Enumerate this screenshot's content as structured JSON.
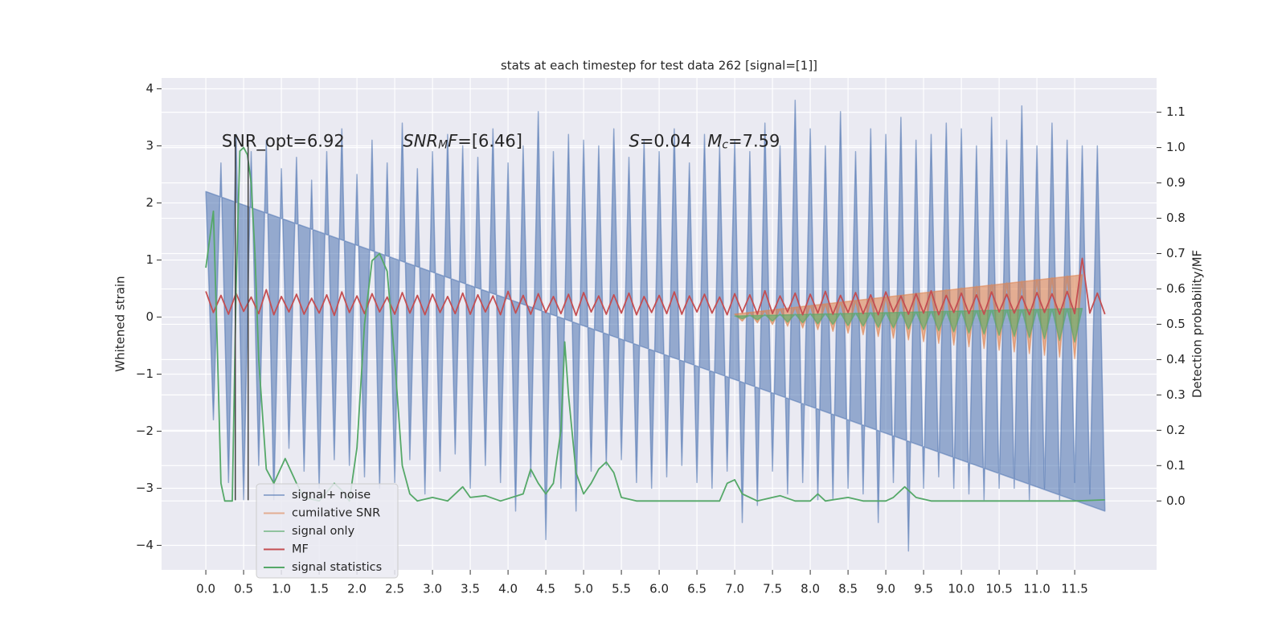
{
  "chart_data": {
    "type": "line",
    "title": "stats at each timestep for test data 262 [signal=[1]]",
    "y_label": "Whitened strain",
    "y2_label": "Detection probability/MF",
    "xlim": [
      -0.586,
      12.584
    ],
    "ylim": [
      -4.43,
      4.19
    ],
    "y2lim": [
      -0.195,
      1.197
    ],
    "xticks": [
      {
        "value": 0,
        "label": "0.0"
      },
      {
        "value": 0.5,
        "label": "0.5"
      },
      {
        "value": 1,
        "label": "1.0"
      },
      {
        "value": 1.5,
        "label": "1.5"
      },
      {
        "value": 2,
        "label": "2.0"
      },
      {
        "value": 2.5,
        "label": "2.5"
      },
      {
        "value": 3,
        "label": "3.0"
      },
      {
        "value": 3.5,
        "label": "3.5"
      },
      {
        "value": 4,
        "label": "4.0"
      },
      {
        "value": 4.5,
        "label": "4.5"
      },
      {
        "value": 5,
        "label": "5.0"
      },
      {
        "value": 5.5,
        "label": "5.5"
      },
      {
        "value": 6,
        "label": "6.0"
      },
      {
        "value": 6.5,
        "label": "6.5"
      },
      {
        "value": 7,
        "label": "7.0"
      },
      {
        "value": 7.5,
        "label": "7.5"
      },
      {
        "value": 8,
        "label": "8.0"
      },
      {
        "value": 8.5,
        "label": "8.5"
      },
      {
        "value": 9,
        "label": "9.0"
      },
      {
        "value": 9.5,
        "label": "9.5"
      },
      {
        "value": 10,
        "label": "10.0"
      },
      {
        "value": 10.5,
        "label": "10.5"
      },
      {
        "value": 11,
        "label": "11.0"
      },
      {
        "value": 11.5,
        "label": "11.5"
      }
    ],
    "yticks": [
      {
        "value": -4,
        "label": "−4"
      },
      {
        "value": -3,
        "label": "−3"
      },
      {
        "value": -2,
        "label": "−2"
      },
      {
        "value": -1,
        "label": "−1"
      },
      0,
      1,
      2,
      3,
      4
    ],
    "y2ticks": [
      {
        "value": 0,
        "label": "0.0"
      },
      {
        "value": 0.1,
        "label": "0.1"
      },
      {
        "value": 0.2,
        "label": "0.2"
      },
      {
        "value": 0.3,
        "label": "0.3"
      },
      {
        "value": 0.4,
        "label": "0.4"
      },
      {
        "value": 0.5,
        "label": "0.5"
      },
      {
        "value": 0.6,
        "label": "0.6"
      },
      {
        "value": 0.7,
        "label": "0.7"
      },
      {
        "value": 0.8,
        "label": "0.8"
      },
      {
        "value": 0.9,
        "label": "0.9"
      },
      {
        "value": 1,
        "label": "1.0"
      },
      {
        "value": 1.1,
        "label": "1.1"
      }
    ],
    "grid": true,
    "legend": "lower left",
    "x": [
      0,
      0.1,
      0.2,
      0.3,
      0.4,
      0.5,
      0.6,
      0.7,
      0.8,
      0.9,
      1,
      1.1,
      1.2,
      1.3,
      1.4,
      1.5,
      1.6,
      1.7,
      1.8,
      1.9,
      2,
      2.1,
      2.2,
      2.3,
      2.4,
      2.5,
      2.6,
      2.7,
      2.8,
      2.9,
      3,
      3.1,
      3.2,
      3.3,
      3.4,
      3.5,
      3.6,
      3.7,
      3.8,
      3.9,
      4,
      4.1,
      4.2,
      4.3,
      4.4,
      4.5,
      4.6,
      4.7,
      4.8,
      4.9,
      5,
      5.1,
      5.2,
      5.3,
      5.4,
      5.5,
      5.6,
      5.7,
      5.8,
      5.9,
      6,
      6.1,
      6.2,
      6.3,
      6.4,
      6.5,
      6.6,
      6.7,
      6.8,
      6.9,
      7,
      7.1,
      7.2,
      7.3,
      7.4,
      7.5,
      7.6,
      7.7,
      7.8,
      7.9,
      8,
      8.1,
      8.2,
      8.3,
      8.4,
      8.5,
      8.6,
      8.7,
      8.8,
      8.9,
      9,
      9.1,
      9.2,
      9.3,
      9.4,
      9.5,
      9.6,
      9.7,
      9.8,
      9.9,
      10,
      10.1,
      10.2,
      10.3,
      10.4,
      10.5,
      10.6,
      10.7,
      10.8,
      10.9,
      11,
      11.1,
      11.2,
      11.3,
      11.4,
      11.5,
      11.6,
      11.7,
      11.8,
      11.9
    ],
    "series": [
      {
        "name": "signal+ noise",
        "color": "#4c72b0",
        "alpha": 0.55,
        "fill": true,
        "values": [
          2.2,
          -1.8,
          2.7,
          -2.9,
          3.2,
          -3.2,
          2.9,
          -2.6,
          3.1,
          -3.2,
          2.6,
          -2.3,
          2.8,
          -2.7,
          2.4,
          -3.0,
          2.9,
          -2.5,
          3.3,
          -2.6,
          2.5,
          -2.8,
          3.1,
          -3.0,
          2.7,
          -2.9,
          3.4,
          -2.5,
          2.6,
          -3.1,
          2.9,
          -2.7,
          3.2,
          -2.4,
          3.0,
          -3.0,
          2.8,
          -2.6,
          3.3,
          -2.9,
          2.7,
          -3.4,
          3.0,
          -2.8,
          3.6,
          -3.9,
          2.9,
          -3.0,
          3.2,
          -3.4,
          3.1,
          -2.7,
          3.0,
          -2.6,
          3.3,
          -2.5,
          2.8,
          -2.9,
          3.1,
          -3.0,
          2.9,
          -2.8,
          3.3,
          -2.6,
          2.7,
          -2.9,
          3.2,
          -3.0,
          3.0,
          -2.7,
          3.1,
          -3.6,
          2.9,
          -3.3,
          3.4,
          -2.7,
          3.0,
          -3.1,
          3.8,
          -2.9,
          3.3,
          -3.2,
          3.0,
          -3.2,
          3.6,
          -3.0,
          2.9,
          -3.1,
          3.3,
          -3.6,
          3.2,
          -2.9,
          3.5,
          -4.1,
          3.1,
          -3.0,
          3.2,
          -2.8,
          3.4,
          -3.0,
          3.3,
          -3.1,
          3.0,
          -3.2,
          3.5,
          -3.0,
          3.1,
          -3.0,
          3.7,
          -3.2,
          3.0,
          -3.0,
          3.4,
          -3.2,
          3.1,
          -2.9,
          3.0,
          -3.1,
          3.0,
          -3.4
        ]
      },
      {
        "name": "cumilative SNR",
        "color": "#dd8452",
        "alpha": 0.6,
        "fill": true,
        "x": [
          7,
          7.1,
          7.2,
          7.3,
          7.4,
          7.5,
          7.6,
          7.7,
          7.8,
          7.9,
          8,
          8.1,
          8.2,
          8.3,
          8.4,
          8.5,
          8.6,
          8.7,
          8.8,
          8.9,
          9,
          9.1,
          9.2,
          9.3,
          9.4,
          9.5,
          9.6,
          9.7,
          9.8,
          9.9,
          10,
          10.1,
          10.2,
          10.3,
          10.4,
          10.5,
          10.6,
          10.7,
          10.8,
          10.9,
          11,
          11.1,
          11.2,
          11.3,
          11.4,
          11.5,
          11.6
        ],
        "values": [
          0.05,
          -0.07,
          0.08,
          -0.1,
          0.11,
          -0.13,
          0.14,
          -0.16,
          0.17,
          -0.19,
          0.2,
          -0.22,
          0.23,
          -0.25,
          0.26,
          -0.28,
          0.29,
          -0.31,
          0.32,
          -0.34,
          0.35,
          -0.37,
          0.38,
          -0.4,
          0.41,
          -0.43,
          0.45,
          -0.46,
          0.48,
          -0.49,
          0.51,
          -0.52,
          0.54,
          -0.55,
          0.57,
          -0.58,
          0.6,
          -0.61,
          0.63,
          -0.64,
          0.66,
          -0.67,
          0.69,
          -0.7,
          0.72,
          -0.73,
          0.74
        ]
      },
      {
        "name": "signal only",
        "color": "#55a868",
        "alpha": 0.6,
        "fill": true,
        "x": [
          7,
          7.1,
          7.2,
          7.3,
          7.4,
          7.5,
          7.6,
          7.7,
          7.8,
          7.9,
          8,
          8.1,
          8.2,
          8.3,
          8.4,
          8.5,
          8.6,
          8.7,
          8.8,
          8.9,
          9,
          9.1,
          9.2,
          9.3,
          9.4,
          9.5,
          9.6,
          9.7,
          9.8,
          9.9,
          10,
          10.1,
          10.2,
          10.3,
          10.4,
          10.5,
          10.6,
          10.7,
          10.8,
          10.9,
          11,
          11.1,
          11.2,
          11.3,
          11.4,
          11.5,
          11.6
        ],
        "values": [
          0.02,
          -0.03,
          0.03,
          -0.05,
          0.04,
          -0.07,
          0.05,
          -0.09,
          0.05,
          -0.1,
          0.06,
          -0.12,
          0.06,
          -0.13,
          0.07,
          -0.15,
          0.07,
          -0.16,
          0.08,
          -0.18,
          0.08,
          -0.19,
          0.09,
          -0.21,
          0.09,
          -0.22,
          0.1,
          -0.24,
          0.1,
          -0.26,
          0.11,
          -0.28,
          0.11,
          -0.3,
          0.12,
          -0.32,
          0.12,
          -0.34,
          0.13,
          -0.36,
          0.13,
          -0.38,
          0.14,
          -0.41,
          0.14,
          -0.44,
          0.15
        ]
      },
      {
        "name": "MF",
        "color": "#c44e52",
        "alpha": 1,
        "fill": false,
        "values": [
          0.45,
          0.08,
          0.38,
          0.05,
          0.42,
          0.1,
          0.35,
          0.06,
          0.48,
          0.04,
          0.36,
          0.09,
          0.4,
          0.05,
          0.33,
          0.07,
          0.39,
          0.03,
          0.44,
          0.08,
          0.37,
          0.06,
          0.41,
          0.09,
          0.35,
          0.05,
          0.43,
          0.07,
          0.38,
          0.04,
          0.4,
          0.08,
          0.36,
          0.06,
          0.42,
          0.05,
          0.39,
          0.09,
          0.37,
          0.04,
          0.45,
          0.07,
          0.38,
          0.05,
          0.41,
          0.08,
          0.36,
          0.06,
          0.4,
          0.03,
          0.43,
          0.09,
          0.37,
          0.05,
          0.39,
          0.07,
          0.42,
          0.04,
          0.36,
          0.08,
          0.38,
          0.06,
          0.44,
          0.05,
          0.37,
          0.09,
          0.4,
          0.07,
          0.35,
          0.04,
          0.41,
          0.08,
          0.39,
          0.05,
          0.46,
          0.06,
          0.37,
          0.09,
          0.42,
          0.04,
          0.4,
          0.07,
          0.45,
          0.05,
          0.38,
          0.08,
          0.43,
          0.06,
          0.39,
          0.04,
          0.44,
          0.09,
          0.37,
          0.05,
          0.41,
          0.07,
          0.46,
          0.04,
          0.38,
          0.08,
          0.42,
          0.06,
          0.39,
          0.05,
          0.44,
          0.09,
          0.4,
          0.07,
          0.37,
          0.04,
          0.43,
          0.08,
          0.41,
          0.05,
          0.45,
          0.06,
          1.03,
          0.07,
          0.42,
          0.05
        ]
      },
      {
        "name": "signal statistics",
        "color": "#55a868",
        "alpha": 1,
        "fill": false,
        "axis": "y2",
        "x": [
          0,
          0.1,
          0.15,
          0.2,
          0.25,
          0.35,
          0.4,
          0.45,
          0.5,
          0.55,
          0.6,
          0.65,
          0.7,
          0.8,
          0.9,
          1.05,
          1.2,
          1.3,
          1.5,
          1.7,
          1.8,
          1.9,
          2,
          2.1,
          2.2,
          2.3,
          2.4,
          2.5,
          2.6,
          2.7,
          2.8,
          3,
          3.2,
          3.4,
          3.5,
          3.7,
          3.9,
          4.2,
          4.3,
          4.4,
          4.5,
          4.6,
          4.7,
          4.75,
          4.8,
          4.9,
          5,
          5.1,
          5.2,
          5.3,
          5.4,
          5.5,
          5.7,
          6,
          6.5,
          6.8,
          6.9,
          7,
          7.1,
          7.3,
          7.5,
          7.6,
          7.8,
          8,
          8.1,
          8.2,
          8.5,
          8.7,
          9,
          9.1,
          9.25,
          9.4,
          9.6,
          10,
          11,
          11.5,
          11.9
        ],
        "values": [
          0.66,
          0.82,
          0.45,
          0.05,
          0,
          0,
          0.6,
          0.99,
          1,
          0.98,
          0.9,
          0.7,
          0.4,
          0.09,
          0.05,
          0.12,
          0.05,
          0.01,
          0,
          0.05,
          0.03,
          0,
          0.15,
          0.5,
          0.68,
          0.7,
          0.65,
          0.4,
          0.1,
          0.02,
          0,
          0.01,
          0,
          0.04,
          0.01,
          0.015,
          0,
          0.02,
          0.09,
          0.05,
          0.02,
          0.05,
          0.2,
          0.45,
          0.3,
          0.08,
          0.02,
          0.05,
          0.09,
          0.11,
          0.08,
          0.01,
          0,
          0,
          0,
          0,
          0.05,
          0.06,
          0.02,
          0,
          0.01,
          0.015,
          0,
          0,
          0.02,
          0,
          0.01,
          0,
          0,
          0.01,
          0.04,
          0.01,
          0,
          0,
          0,
          0,
          0.003
        ]
      }
    ],
    "vlines": [
      {
        "x": 0.39,
        "ymin": -3.21,
        "ymax": 3.08,
        "color": "#444444"
      },
      {
        "x": 0.56,
        "ymin": -3.21,
        "ymax": 3.08,
        "color": "#444444"
      }
    ],
    "annotations": [
      {
        "x": 0.21,
        "y": 3.07,
        "parts": [
          {
            "text": "SNR_opt=6.92",
            "style": "normal"
          }
        ]
      },
      {
        "x": 2.61,
        "y": 3.07,
        "parts": [
          {
            "text": "SNR",
            "style": "italic"
          },
          {
            "text": "M",
            "style": "sub"
          },
          {
            "text": "F",
            "style": "italic"
          },
          {
            "text": "=[6.46]",
            "style": "normal"
          }
        ]
      },
      {
        "x": 5.6,
        "y": 3.07,
        "parts": [
          {
            "text": "S",
            "style": "italic"
          },
          {
            "text": "=0.04   ",
            "style": "normal"
          },
          {
            "text": "M",
            "style": "italic"
          },
          {
            "text": "c",
            "style": "sub"
          },
          {
            "text": "=7.59",
            "style": "normal"
          }
        ]
      }
    ]
  }
}
